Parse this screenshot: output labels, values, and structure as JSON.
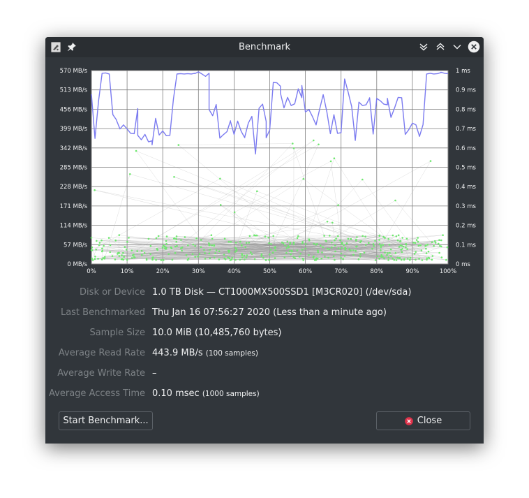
{
  "window": {
    "title": "Benchmark"
  },
  "titlebar": {
    "app_icon": "drive-harddisk-icon",
    "pin_icon": "pin-icon"
  },
  "details": [
    {
      "label": "Disk or Device",
      "value": "1.0 TB Disk — CT1000MX500SSD1 [M3CR020] (/dev/sda)",
      "note": ""
    },
    {
      "label": "Last Benchmarked",
      "value": "Thu Jan 16 07:56:27 2020 (Less than a minute ago)",
      "note": ""
    },
    {
      "label": "Sample Size",
      "value": "10.0 MiB (10,485,760 bytes)",
      "note": ""
    },
    {
      "label": "Average Read Rate",
      "value": "443.9 MB/s",
      "note": "(100 samples)"
    },
    {
      "label": "Average Write Rate",
      "value": "–",
      "note": ""
    },
    {
      "label": "Average Access Time",
      "value": "0.10 msec",
      "note": "(1000 samples)"
    }
  ],
  "buttons": {
    "start": "Start Benchmark...",
    "close": "Close"
  },
  "colors": {
    "read": "#7b7bf0",
    "access": "#6fe86f",
    "grid": "#7f7f7f",
    "background": "#31363b",
    "close_icon": "#e0334b"
  },
  "chart_data": {
    "type": "line",
    "x_ticks": [
      "0%",
      "10%",
      "20%",
      "30%",
      "40%",
      "50%",
      "60%",
      "70%",
      "80%",
      "90%",
      "100%"
    ],
    "y_left_ticks": [
      "0 MB/s",
      "57 MB/s",
      "114 MB/s",
      "171 MB/s",
      "228 MB/s",
      "285 MB/s",
      "342 MB/s",
      "399 MB/s",
      "456 MB/s",
      "513 MB/s",
      "570 MB/s"
    ],
    "y_right_ticks": [
      "0 ms",
      "0.1 ms",
      "0.2 ms",
      "0.3 ms",
      "0.4 ms",
      "0.5 ms",
      "0.6 ms",
      "0.7 ms",
      "0.8 ms",
      "0.9 ms",
      "1 ms"
    ],
    "xlim": [
      0,
      100
    ],
    "ylim_left": [
      0,
      570
    ],
    "ylim_right": [
      0,
      1
    ],
    "grid": true,
    "series": [
      {
        "axis": "left",
        "x": [
          0,
          1,
          2,
          3,
          3,
          4,
          5,
          6,
          7,
          7,
          8,
          9,
          10,
          11,
          12,
          13,
          13,
          14,
          15,
          16,
          17,
          17,
          18,
          19,
          20,
          21,
          22,
          23,
          23,
          24,
          25,
          26,
          27,
          28,
          29,
          29,
          30,
          31,
          32,
          33,
          33,
          34,
          35,
          36,
          37,
          38,
          39,
          39,
          40,
          41,
          42,
          43,
          43,
          44,
          45,
          46,
          47,
          48,
          49,
          49,
          50,
          51,
          52,
          53,
          53,
          54,
          55,
          56,
          57,
          58,
          59,
          59,
          60,
          61,
          62,
          63,
          63,
          64,
          65,
          66,
          67,
          68,
          69,
          69,
          70,
          71,
          72,
          73,
          73,
          74,
          75,
          76,
          77,
          78,
          78,
          79,
          80,
          81,
          82,
          83,
          83,
          84,
          85,
          86,
          87,
          88,
          88,
          89,
          90,
          91,
          92,
          93,
          93,
          94,
          95,
          96,
          97,
          98,
          98,
          99,
          100
        ],
        "values": [
          500,
          370,
          480,
          562,
          562,
          563,
          560,
          440,
          425,
          424,
          398,
          410,
          398,
          385,
          384,
          458,
          379,
          366,
          382,
          360,
          363,
          351,
          429,
          380,
          392,
          378,
          379,
          486,
          486,
          560,
          561,
          560,
          561,
          560,
          562,
          561,
          566,
          560,
          553,
          562,
          455,
          437,
          470,
          371,
          381,
          390,
          422,
          420,
          382,
          421,
          391,
          372,
          374,
          415,
          435,
          324,
          459,
          471,
          420,
          372,
          395,
          535,
          534,
          524,
          504,
          460,
          491,
          467,
          472,
          516,
          490,
          526,
          448,
          455,
          434,
          410,
          410,
          456,
          499,
          449,
          384,
          440,
          385,
          385,
          387,
          545,
          506,
          463,
          462,
          364,
          477,
          467,
          469,
          489,
          490,
          383,
          488,
          481,
          471,
          469,
          488,
          432,
          460,
          491,
          490,
          382,
          382,
          396,
          415,
          410,
          376,
          411,
          412,
          560,
          562,
          560,
          561,
          564,
          565,
          562,
          561
        ]
      },
      {
        "axis": "right",
        "type": "scatter",
        "x_range": [
          0,
          100
        ],
        "typical_range_ms": [
          0.02,
          0.15
        ],
        "max_ms": 0.67,
        "count": 1000
      }
    ]
  }
}
